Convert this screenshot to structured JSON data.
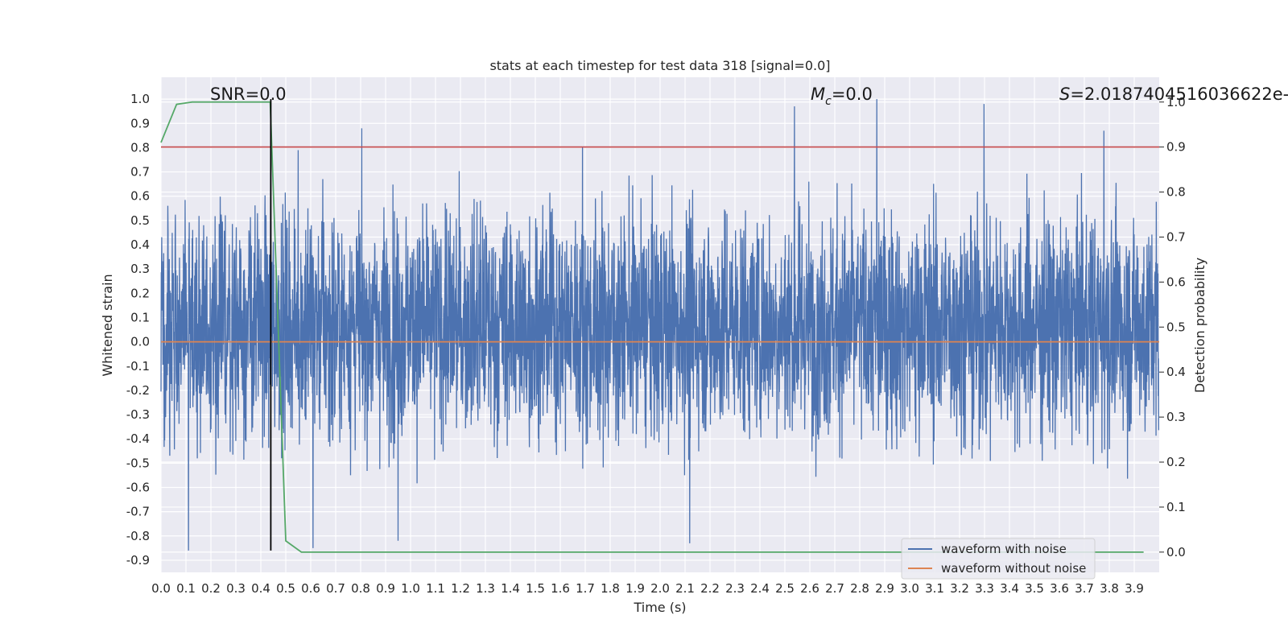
{
  "chart_data": {
    "type": "line",
    "title": "stats at each timestep for test data 318 [signal=0.0]",
    "xlabel": "Time (s)",
    "ylabel": "Whitened strain",
    "y2label": "Detection probability",
    "xlim": [
      0.0,
      4.0
    ],
    "ylim": [
      -0.95,
      1.09
    ],
    "y2lim": [
      -0.045,
      1.055
    ],
    "x_ticks": [
      "0.0",
      "0.1",
      "0.2",
      "0.3",
      "0.4",
      "0.5",
      "0.6",
      "0.7",
      "0.8",
      "0.9",
      "1.0",
      "1.1",
      "1.2",
      "1.3",
      "1.4",
      "1.5",
      "1.6",
      "1.7",
      "1.8",
      "1.9",
      "2.0",
      "2.1",
      "2.2",
      "2.3",
      "2.4",
      "2.5",
      "2.6",
      "2.7",
      "2.8",
      "2.9",
      "3.0",
      "3.1",
      "3.2",
      "3.3",
      "3.4",
      "3.5",
      "3.6",
      "3.7",
      "3.8",
      "3.9"
    ],
    "y_ticks": [
      "1.0",
      "0.9",
      "0.8",
      "0.7",
      "0.6",
      "0.5",
      "0.4",
      "0.3",
      "0.2",
      "0.1",
      "0.0",
      "-0.1",
      "-0.2",
      "-0.3",
      "-0.4",
      "-0.5",
      "-0.6",
      "-0.7",
      "-0.8",
      "-0.9"
    ],
    "y2_ticks": [
      "1.0",
      "0.9",
      "0.8",
      "0.7",
      "0.6",
      "0.5",
      "0.4",
      "0.3",
      "0.2",
      "0.1",
      "0.0"
    ],
    "grid": true,
    "legend": {
      "placement": "lower-right",
      "entries": [
        "waveform with noise",
        "waveform without noise"
      ]
    },
    "annotations": {
      "snr": "SNR=0.0",
      "mc_symbol": "M",
      "mc_sub": "c",
      "mc_value": "=0.0",
      "s_symbol": "S",
      "s_value": "=2.0187404516036622e-"
    },
    "series": [
      {
        "name": "waveform with noise",
        "axis": "left",
        "color": "#4c72b0",
        "note": "noise, approx range -0.86 to 1.0",
        "amplitude_range": [
          -0.86,
          1.0
        ],
        "peaks": [
          [
            0.44,
            0.88
          ],
          [
            2.54,
            0.97
          ],
          [
            2.87,
            1.0
          ],
          [
            3.3,
            0.98
          ],
          [
            3.78,
            0.87
          ],
          [
            1.69,
            0.8
          ],
          [
            0.55,
            0.79
          ]
        ],
        "troughs": [
          [
            0.11,
            -0.86
          ],
          [
            0.61,
            -0.85
          ],
          [
            2.12,
            -0.83
          ],
          [
            0.95,
            -0.82
          ]
        ]
      },
      {
        "name": "waveform without noise",
        "axis": "left",
        "color": "#dd8452",
        "x": [
          0.0,
          4.0
        ],
        "y": [
          0.0,
          0.0
        ]
      },
      {
        "name": "detection probability",
        "axis": "right",
        "color": "#55a868",
        "x": [
          0.0,
          0.0625,
          0.125,
          0.1875,
          0.25,
          0.3125,
          0.375,
          0.4375,
          0.5,
          0.5625,
          1.0,
          1.5,
          2.0,
          2.5,
          3.0,
          3.5,
          3.9375
        ],
        "y": [
          0.91,
          0.995,
          1.0,
          1.0,
          1.0,
          1.0,
          1.0,
          1.0,
          0.025,
          0.0,
          0.0,
          0.0,
          0.0,
          0.0,
          0.0,
          0.0,
          0.0
        ]
      },
      {
        "name": "threshold",
        "axis": "right",
        "color": "#c44e52",
        "x": [
          0.0,
          4.0
        ],
        "y": [
          0.9,
          0.9
        ]
      },
      {
        "name": "event time marker",
        "axis": "left",
        "color": "#000000",
        "x": [
          0.44,
          0.44
        ],
        "y": [
          -0.86,
          1.0
        ]
      }
    ]
  }
}
